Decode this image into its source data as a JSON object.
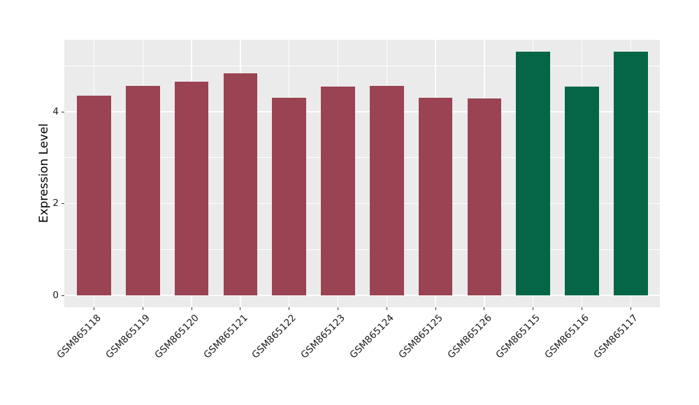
{
  "chart_data": {
    "type": "bar",
    "title": "",
    "xlabel": "",
    "ylabel": "Expression Level",
    "categories": [
      "GSM865118",
      "GSM865119",
      "GSM865120",
      "GSM865121",
      "GSM865122",
      "GSM865123",
      "GSM865124",
      "GSM865125",
      "GSM865126",
      "GSM865115",
      "GSM865116",
      "GSM865117"
    ],
    "values": [
      4.35,
      4.56,
      4.65,
      4.83,
      4.31,
      4.54,
      4.57,
      4.3,
      4.29,
      5.31,
      4.55,
      5.31
    ],
    "bar_colors": [
      "#9a4352",
      "#9a4352",
      "#9a4352",
      "#9a4352",
      "#9a4352",
      "#9a4352",
      "#9a4352",
      "#9a4352",
      "#9a4352",
      "#046647",
      "#046647",
      "#046647"
    ],
    "ylim": [
      0,
      5.57
    ],
    "yticks": [
      0,
      2,
      4
    ],
    "ytick_labels": [
      "0",
      "2",
      "4"
    ],
    "yticks_minor": [
      1,
      3,
      5
    ],
    "xtick_rotation_deg": 45,
    "grid": "horizontal major+minor white lines, vertical white line at each category center",
    "legend": false
  },
  "colors": {
    "figure_bg": "#ffffff",
    "panel_bg": "#ebebeb",
    "gridline": "#ffffff",
    "bar_red": "#9a4352",
    "bar_green": "#046647",
    "tick_mark": "#333333",
    "tick_text": "#1a1a1a",
    "axis_title_text": "#000000"
  }
}
